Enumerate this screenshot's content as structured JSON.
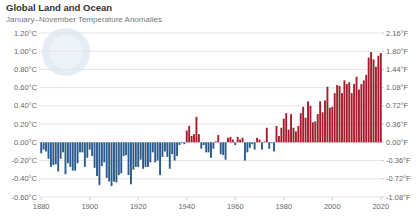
{
  "chart_data": {
    "type": "bar",
    "title": "Global Land and Ocean",
    "subtitle": "January–November Temperature Anomalies",
    "x": [
      1880,
      1881,
      1882,
      1883,
      1884,
      1885,
      1886,
      1887,
      1888,
      1889,
      1890,
      1891,
      1892,
      1893,
      1894,
      1895,
      1896,
      1897,
      1898,
      1899,
      1900,
      1901,
      1902,
      1903,
      1904,
      1905,
      1906,
      1907,
      1908,
      1909,
      1910,
      1911,
      1912,
      1913,
      1914,
      1915,
      1916,
      1917,
      1918,
      1919,
      1920,
      1921,
      1922,
      1923,
      1924,
      1925,
      1926,
      1927,
      1928,
      1929,
      1930,
      1931,
      1932,
      1933,
      1934,
      1935,
      1936,
      1937,
      1938,
      1939,
      1940,
      1941,
      1942,
      1943,
      1944,
      1945,
      1946,
      1947,
      1948,
      1949,
      1950,
      1951,
      1952,
      1953,
      1954,
      1955,
      1956,
      1957,
      1958,
      1959,
      1960,
      1961,
      1962,
      1963,
      1964,
      1965,
      1966,
      1967,
      1968,
      1969,
      1970,
      1971,
      1972,
      1973,
      1974,
      1975,
      1976,
      1977,
      1978,
      1979,
      1980,
      1981,
      1982,
      1983,
      1984,
      1985,
      1986,
      1987,
      1988,
      1989,
      1990,
      1991,
      1992,
      1993,
      1994,
      1995,
      1996,
      1997,
      1998,
      1999,
      2000,
      2001,
      2002,
      2003,
      2004,
      2005,
      2006,
      2007,
      2008,
      2009,
      2010,
      2011,
      2012,
      2013,
      2014,
      2015,
      2016,
      2017,
      2018,
      2019,
      2020
    ],
    "values": [
      -0.12,
      -0.08,
      -0.1,
      -0.18,
      -0.27,
      -0.25,
      -0.24,
      -0.32,
      -0.18,
      -0.11,
      -0.35,
      -0.23,
      -0.27,
      -0.31,
      -0.31,
      -0.23,
      -0.11,
      -0.11,
      -0.27,
      -0.17,
      -0.08,
      -0.15,
      -0.28,
      -0.37,
      -0.47,
      -0.26,
      -0.22,
      -0.39,
      -0.43,
      -0.48,
      -0.43,
      -0.44,
      -0.36,
      -0.34,
      -0.15,
      -0.14,
      -0.36,
      -0.46,
      -0.3,
      -0.27,
      -0.27,
      -0.19,
      -0.29,
      -0.27,
      -0.27,
      -0.22,
      -0.11,
      -0.22,
      -0.2,
      -0.36,
      -0.16,
      -0.1,
      -0.16,
      -0.29,
      -0.13,
      -0.2,
      -0.15,
      -0.03,
      -0.01,
      -0.02,
      0.13,
      0.18,
      0.07,
      0.09,
      0.28,
      0.09,
      -0.07,
      -0.03,
      -0.11,
      -0.11,
      -0.17,
      -0.07,
      0.01,
      0.08,
      -0.13,
      -0.14,
      -0.19,
      0.05,
      0.06,
      0.03,
      -0.03,
      0.06,
      0.03,
      0.05,
      -0.2,
      -0.11,
      -0.06,
      -0.02,
      -0.08,
      0.05,
      0.03,
      -0.08,
      0.01,
      0.16,
      -0.07,
      -0.01,
      -0.1,
      0.18,
      0.07,
      0.16,
      0.26,
      0.32,
      0.14,
      0.31,
      0.16,
      0.12,
      0.18,
      0.32,
      0.39,
      0.27,
      0.45,
      0.4,
      0.22,
      0.23,
      0.31,
      0.45,
      0.33,
      0.46,
      0.61,
      0.38,
      0.39,
      0.54,
      0.63,
      0.62,
      0.54,
      0.68,
      0.64,
      0.66,
      0.54,
      0.64,
      0.72,
      0.58,
      0.64,
      0.68,
      0.74,
      0.93,
      0.99,
      0.91,
      0.83,
      0.95,
      0.98
    ],
    "colors": [
      "#2b5b8c",
      "#2b5b8c",
      "#2b5b8c",
      "#2b5b8c",
      "#2b5b8c",
      "#2b5b8c",
      "#2b5b8c",
      "#2b5b8c",
      "#2b5b8c",
      "#2b5b8c",
      "#2b5b8c",
      "#2b5b8c",
      "#2b5b8c",
      "#2b5b8c",
      "#2b5b8c",
      "#2b5b8c",
      "#2b5b8c",
      "#2b5b8c",
      "#2b5b8c",
      "#2b5b8c",
      "#2b5b8c",
      "#2b5b8c",
      "#2b5b8c",
      "#2b5b8c",
      "#2b5b8c",
      "#2b5b8c",
      "#2b5b8c",
      "#2b5b8c",
      "#2b5b8c",
      "#2b5b8c",
      "#2b5b8c",
      "#2b5b8c",
      "#2b5b8c",
      "#2b5b8c",
      "#2b5b8c",
      "#2b5b8c",
      "#2b5b8c",
      "#2b5b8c",
      "#2b5b8c",
      "#2b5b8c",
      "#2b5b8c",
      "#2b5b8c",
      "#2b5b8c",
      "#2b5b8c",
      "#2b5b8c",
      "#2b5b8c",
      "#2b5b8c",
      "#2b5b8c",
      "#2b5b8c",
      "#2b5b8c",
      "#2b5b8c",
      "#2b5b8c",
      "#2b5b8c",
      "#2b5b8c",
      "#2b5b8c",
      "#2b5b8c",
      "#2b5b8c",
      "#2b5b8c",
      "#2b5b8c",
      "#2b5b8c",
      "#a51d2d",
      "#a51d2d",
      "#a51d2d",
      "#a51d2d",
      "#a51d2d",
      "#a51d2d",
      "#2b5b8c",
      "#2b5b8c",
      "#2b5b8c",
      "#2b5b8c",
      "#2b5b8c",
      "#2b5b8c",
      "#a51d2d",
      "#a51d2d",
      "#2b5b8c",
      "#2b5b8c",
      "#2b5b8c",
      "#a51d2d",
      "#a51d2d",
      "#a51d2d",
      "#2b5b8c",
      "#a51d2d",
      "#a51d2d",
      "#a51d2d",
      "#2b5b8c",
      "#2b5b8c",
      "#2b5b8c",
      "#2b5b8c",
      "#2b5b8c",
      "#a51d2d",
      "#a51d2d",
      "#2b5b8c",
      "#a51d2d",
      "#a51d2d",
      "#2b5b8c",
      "#2b5b8c",
      "#2b5b8c",
      "#a51d2d",
      "#a51d2d",
      "#a51d2d",
      "#a51d2d",
      "#a51d2d",
      "#a51d2d",
      "#a51d2d",
      "#a51d2d",
      "#a51d2d",
      "#a51d2d",
      "#a51d2d",
      "#a51d2d",
      "#a51d2d",
      "#a51d2d",
      "#a51d2d",
      "#a51d2d",
      "#a51d2d",
      "#a51d2d",
      "#a51d2d",
      "#a51d2d",
      "#a51d2d",
      "#a51d2d",
      "#a51d2d",
      "#a51d2d",
      "#a51d2d",
      "#a51d2d",
      "#a51d2d",
      "#a51d2d",
      "#a51d2d",
      "#a51d2d",
      "#a51d2d",
      "#a51d2d",
      "#a51d2d",
      "#a51d2d",
      "#a51d2d",
      "#a51d2d",
      "#a51d2d",
      "#a51d2d",
      "#a51d2d",
      "#a51d2d",
      "#a51d2d",
      "#a51d2d",
      "#a51d2d",
      "#a51d2d"
    ],
    "xlim": [
      1879.5,
      2020.5
    ],
    "xticks": [
      1880,
      1900,
      1920,
      1940,
      1960,
      1980,
      2000,
      2020
    ],
    "ylim": [
      -0.6,
      1.2
    ],
    "yticks": [
      {
        "value": -0.6,
        "label": "-0.60°C"
      },
      {
        "value": -0.4,
        "label": "-0.40°C"
      },
      {
        "value": -0.2,
        "label": "-0.20°C"
      },
      {
        "value": 0,
        "label": "0.00°C"
      },
      {
        "value": 0.2,
        "label": "0.20°C"
      },
      {
        "value": 0.4,
        "label": "0.40°C"
      },
      {
        "value": 0.6,
        "label": "0.60°C"
      },
      {
        "value": 0.8,
        "label": "0.80°C"
      },
      {
        "value": 1.0,
        "label": "1.00°C"
      },
      {
        "value": 1.2,
        "label": "1.20°C"
      }
    ],
    "y2lim": [
      -1.08,
      2.16
    ],
    "y2ticks": [
      {
        "value": -1.08,
        "label": "-1.08°F"
      },
      {
        "value": -0.72,
        "label": "-0.72°F"
      },
      {
        "value": -0.36,
        "label": "-0.36°F"
      },
      {
        "value": 0,
        "label": "0.00°F"
      },
      {
        "value": 0.36,
        "label": "0.36°F"
      },
      {
        "value": 0.72,
        "label": "0.72°F"
      },
      {
        "value": 1.08,
        "label": "1.08°F"
      },
      {
        "value": 1.44,
        "label": "1.44°F"
      },
      {
        "value": 1.8,
        "label": "1.80°F"
      },
      {
        "value": 2.16,
        "label": "2.16°F"
      }
    ],
    "grid": true
  }
}
